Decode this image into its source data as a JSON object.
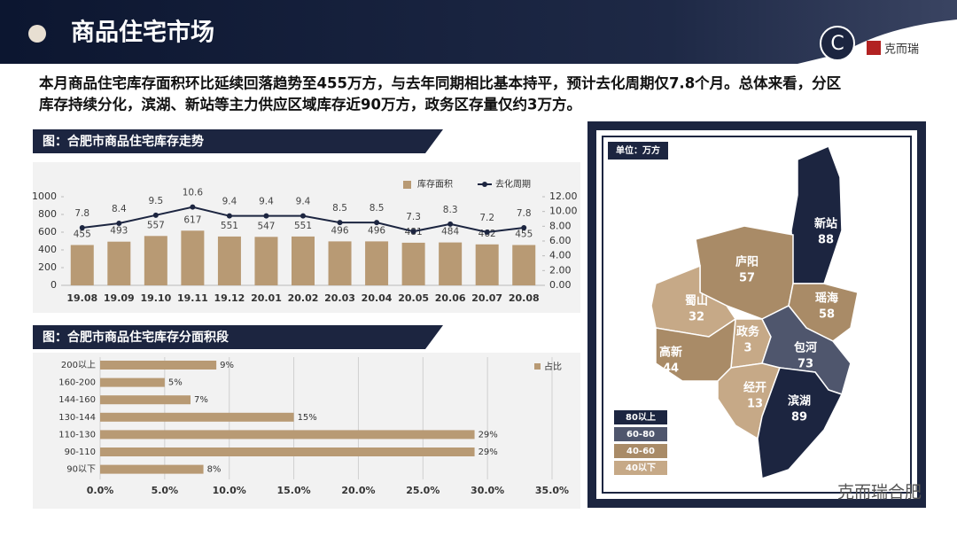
{
  "header": {
    "title": "商品住宅市场",
    "badge": "C",
    "logo": "克而瑞"
  },
  "summary": [
    "本月商品住宅库存面积环比延续回落趋势至455万方，与去年同期相比基本持平，预计去化周期仅7.8个月。总体来看，分区",
    "库存持续分化，滨湖、新站等主力供应区域库存近90万方，政务区存量仅约3万方。"
  ],
  "chart_data": [
    {
      "type": "combo",
      "title": "图：合肥市商品住宅库存走势",
      "categories": [
        "19.08",
        "19.09",
        "19.10",
        "19.11",
        "19.12",
        "20.01",
        "20.02",
        "20.03",
        "20.04",
        "20.05",
        "20.06",
        "20.07",
        "20.08"
      ],
      "series": [
        {
          "name": "库存面积",
          "type": "bar",
          "color": "#b89a74",
          "values": [
            455,
            493,
            557,
            617,
            551,
            547,
            551,
            496,
            496,
            481,
            484,
            462,
            455
          ]
        },
        {
          "name": "去化周期",
          "type": "line",
          "color": "#1c2540",
          "axis": "y2",
          "values": [
            7.8,
            8.4,
            9.5,
            10.6,
            9.4,
            9.4,
            9.4,
            8.5,
            8.5,
            7.3,
            8.3,
            7.2,
            7.8
          ]
        }
      ],
      "ylim": [
        0,
        1000
      ],
      "yticks": [
        0,
        200,
        400,
        600,
        800,
        1000
      ],
      "y2lim": [
        0,
        12
      ],
      "y2ticks": [
        {
          "value": 0,
          "label": "0.00"
        },
        {
          "value": 2,
          "label": "2.00"
        },
        {
          "value": 4,
          "label": "4.00"
        },
        {
          "value": 6,
          "label": "6.00"
        },
        {
          "value": 8,
          "label": "8.00"
        },
        {
          "value": 10,
          "label": "10.00"
        },
        {
          "value": 12,
          "label": "12.00"
        }
      ],
      "legend": "top-right",
      "grid": false
    },
    {
      "type": "hbar",
      "title": "图：合肥市商品住宅库存分面积段",
      "categories": [
        "200以上",
        "160-200",
        "144-160",
        "130-144",
        "110-130",
        "90-110",
        "90以下"
      ],
      "series": [
        {
          "name": "占比",
          "color": "#b89a74",
          "values": [
            9,
            5,
            7,
            15,
            29,
            29,
            8
          ],
          "value_labels": [
            "9%",
            "5%",
            "7%",
            "15%",
            "29%",
            "29%",
            "8%"
          ]
        }
      ],
      "xlim": [
        0,
        35
      ],
      "xticks": [
        {
          "value": 0,
          "label": "0.0%"
        },
        {
          "value": 5,
          "label": "5.0%"
        },
        {
          "value": 10,
          "label": "10.0%"
        },
        {
          "value": 15,
          "label": "15.0%"
        },
        {
          "value": 20,
          "label": "20.0%"
        },
        {
          "value": 25,
          "label": "25.0%"
        },
        {
          "value": 30,
          "label": "30.0%"
        },
        {
          "value": 35,
          "label": "35.0%"
        }
      ],
      "legend": "top-right",
      "grid": true
    }
  ],
  "map": {
    "unit": "单位：万方",
    "regions": [
      {
        "name": "新站",
        "value": 88,
        "color": "#1c2540"
      },
      {
        "name": "庐阳",
        "value": 57,
        "color": "#a98b67"
      },
      {
        "name": "瑶海",
        "value": 58,
        "color": "#a98b67"
      },
      {
        "name": "蜀山",
        "value": 32,
        "color": "#c6a987"
      },
      {
        "name": "政务",
        "value": 3,
        "color": "#c6a987"
      },
      {
        "name": "包河",
        "value": 73,
        "color": "#4f566d"
      },
      {
        "name": "高新",
        "value": 44,
        "color": "#a98b67"
      },
      {
        "name": "经开",
        "value": 13,
        "color": "#c6a987"
      },
      {
        "name": "滨湖",
        "value": 89,
        "color": "#1c2540"
      }
    ],
    "legend": [
      {
        "label": "80以上",
        "color": "#1c2540"
      },
      {
        "label": "60-80",
        "color": "#4f566d"
      },
      {
        "label": "40-60",
        "color": "#a98b67"
      },
      {
        "label": "40以下",
        "color": "#c6a987"
      }
    ]
  },
  "footer": {
    "watermark": "克而瑞合肥"
  }
}
